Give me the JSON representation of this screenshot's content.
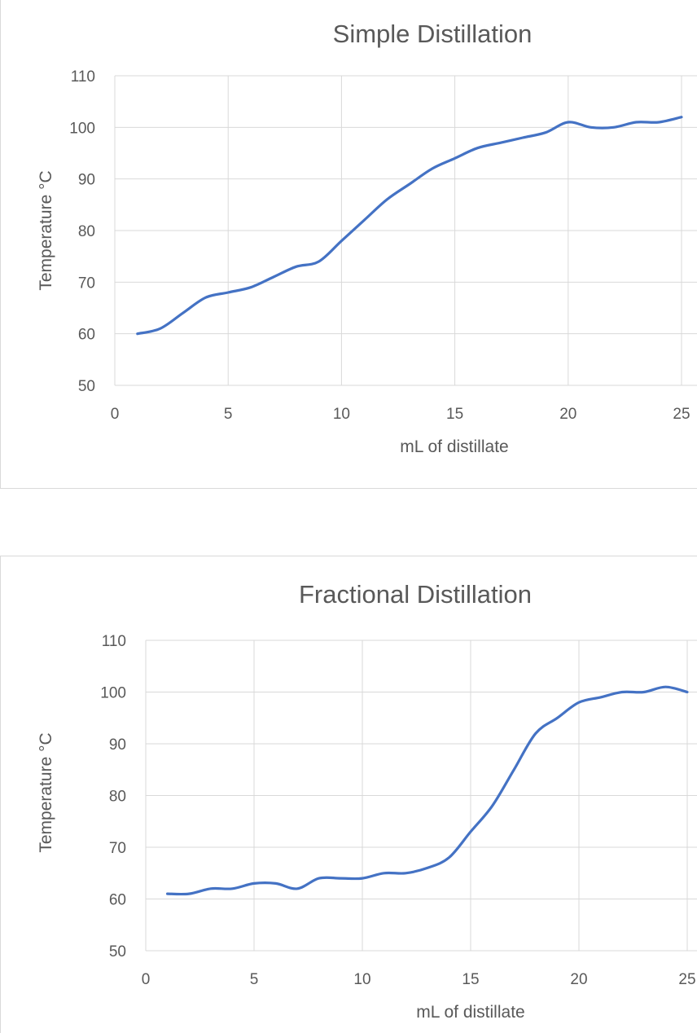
{
  "chart_data": [
    {
      "type": "line",
      "title": "Simple Distillation",
      "xlabel": "mL of distillate",
      "ylabel": "Temperature °C",
      "xlim": [
        0,
        25
      ],
      "ylim": [
        50,
        110
      ],
      "xticks": [
        0,
        5,
        10,
        15,
        20,
        25
      ],
      "yticks": [
        50,
        60,
        70,
        80,
        90,
        100,
        110
      ],
      "grid": true,
      "smooth": true,
      "series": [
        {
          "x": [
            1,
            2,
            3,
            4,
            5,
            6,
            7,
            8,
            9,
            10,
            11,
            12,
            13,
            14,
            15,
            16,
            17,
            18,
            19,
            20,
            21,
            22,
            23,
            24,
            25
          ],
          "y": [
            60,
            61,
            64,
            67,
            68,
            69,
            71,
            73,
            74,
            78,
            82,
            86,
            89,
            92,
            94,
            96,
            97,
            98,
            99,
            101,
            100,
            100,
            101,
            101,
            102
          ]
        }
      ],
      "colors": {
        "line": "#4472c4",
        "grid": "#d9d9d9",
        "text": "#595959"
      }
    },
    {
      "type": "line",
      "title": "Fractional Distillation",
      "xlabel": "mL of distillate",
      "ylabel": "Temperature °C",
      "xlim": [
        0,
        25
      ],
      "ylim": [
        50,
        110
      ],
      "xticks": [
        0,
        5,
        10,
        15,
        20,
        25
      ],
      "yticks": [
        50,
        60,
        70,
        80,
        90,
        100,
        110
      ],
      "grid": true,
      "smooth": true,
      "series": [
        {
          "x": [
            1,
            2,
            3,
            4,
            5,
            6,
            7,
            8,
            9,
            10,
            11,
            12,
            13,
            14,
            15,
            16,
            17,
            18,
            19,
            20,
            21,
            22,
            23,
            24,
            25
          ],
          "y": [
            61,
            61,
            62,
            62,
            63,
            63,
            62,
            64,
            64,
            64,
            65,
            65,
            66,
            68,
            73,
            78,
            85,
            92,
            95,
            98,
            99,
            100,
            100,
            101,
            100
          ]
        }
      ],
      "colors": {
        "line": "#4472c4",
        "grid": "#d9d9d9",
        "text": "#595959"
      }
    }
  ]
}
